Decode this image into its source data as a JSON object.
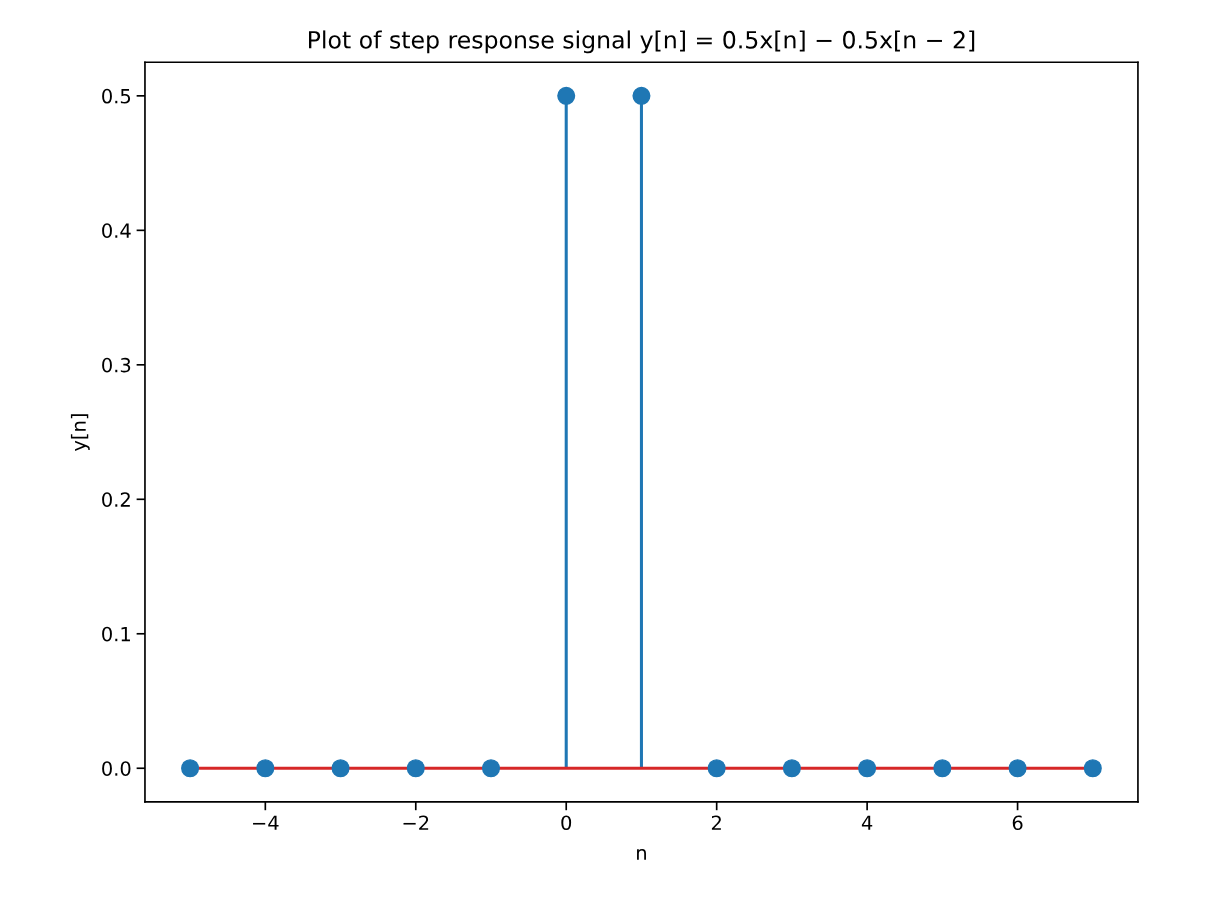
{
  "chart_data": {
    "type": "lollipop",
    "title": "Plot of step response signal y[n] = 0.5x[n] − 0.5x[n − 2]",
    "xlabel": "n",
    "ylabel": "y[n]",
    "x": [
      -5,
      -4,
      -3,
      -2,
      -1,
      0,
      1,
      2,
      3,
      4,
      5,
      6,
      7
    ],
    "series": [
      {
        "color": "#1f77b4",
        "values": [
          0,
          0,
          0,
          0,
          0,
          0.5,
          0.5,
          0,
          0,
          0,
          0,
          0,
          0
        ]
      }
    ],
    "xlim": [
      -5.6,
      7.6
    ],
    "ylim": [
      -0.025,
      0.525
    ],
    "xticks": [
      {
        "value": -4,
        "label": "−4"
      },
      {
        "value": -2,
        "label": "−2"
      },
      0,
      2,
      4,
      6
    ],
    "yticks": [
      {
        "value": 0,
        "label": "0.0"
      },
      0.1,
      0.2,
      0.3,
      0.4,
      0.5
    ],
    "ref_lines": [
      {
        "axis": "y",
        "value": 0,
        "color": "#d62728",
        "line_style": "solid"
      }
    ],
    "marker": "circle",
    "grid": false
  }
}
